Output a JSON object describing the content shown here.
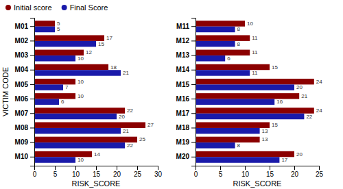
{
  "chart_data": [
    {
      "type": "bar",
      "orientation": "horizontal",
      "categories": [
        "M01",
        "M02",
        "M03",
        "M04",
        "M05",
        "M06",
        "M07",
        "M08",
        "M09",
        "M10"
      ],
      "series": [
        {
          "name": "Initial score",
          "color": "#8B0000",
          "values": [
            5,
            17,
            12,
            18,
            10,
            10,
            22,
            27,
            25,
            14
          ]
        },
        {
          "name": "Final Score",
          "color": "#1a1aaa",
          "values": [
            5,
            15,
            10,
            21,
            7,
            6,
            20,
            21,
            22,
            10
          ]
        }
      ],
      "xlabel": "RISK_SCORE",
      "ylabel": "VICTIM CODE",
      "xlim": [
        0,
        30
      ],
      "xticks": [
        0,
        5,
        10,
        15,
        20,
        25,
        30
      ],
      "data_labels": true,
      "grid": false,
      "legend": "top-left"
    },
    {
      "type": "bar",
      "orientation": "horizontal",
      "categories": [
        "M11",
        "M12",
        "M13",
        "M14",
        "M15",
        "M16",
        "M17",
        "M18",
        "M19",
        "M20"
      ],
      "series": [
        {
          "name": "Initial score",
          "color": "#8B0000",
          "values": [
            10,
            11,
            11,
            15,
            24,
            21,
            24,
            15,
            13,
            20
          ]
        },
        {
          "name": "Final Score",
          "color": "#1a1aaa",
          "values": [
            8,
            8,
            6,
            11,
            20,
            16,
            22,
            13,
            8,
            17
          ]
        }
      ],
      "xlabel": "RISK_SCORE",
      "xlim": [
        0,
        25
      ],
      "xticks": [
        0,
        5,
        10,
        15,
        20,
        25
      ],
      "data_labels": true,
      "grid": false
    }
  ]
}
